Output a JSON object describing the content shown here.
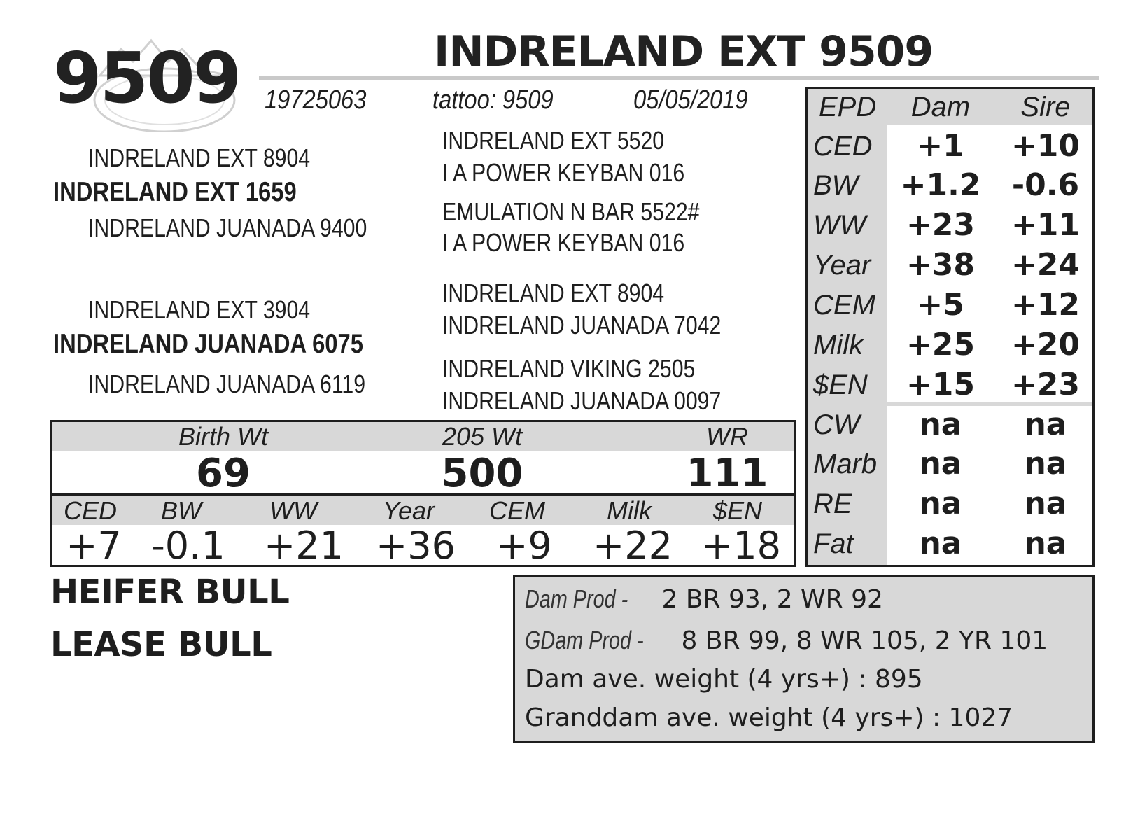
{
  "header": {
    "lot_number": "9509",
    "name": "INDRELAND EXT 9509",
    "registration": "19725063",
    "tattoo": "tattoo: 9509",
    "birth_date": "05/05/2019"
  },
  "pedigree": {
    "sire": "INDRELAND EXT 1659",
    "sire_sire": "INDRELAND EXT 8904",
    "sire_dam": "INDRELAND JUANADA 9400",
    "dam": "INDRELAND JUANADA 6075",
    "dam_sire": "INDRELAND EXT 3904",
    "dam_dam": "INDRELAND JUANADA 6119",
    "right_column": [
      "INDRELAND EXT 5520",
      "I A POWER KEYBAN 016",
      "EMULATION N BAR 5522#",
      "I A POWER KEYBAN 016",
      "INDRELAND EXT 8904",
      "INDRELAND JUANADA 7042",
      "INDRELAND VIKING 2505",
      "INDRELAND JUANADA 0097"
    ]
  },
  "performance": {
    "headers": [
      "Birth Wt",
      "205 Wt",
      "WR"
    ],
    "values": [
      "69",
      "500",
      "111"
    ]
  },
  "epd": {
    "headers": [
      "CED",
      "BW",
      "WW",
      "Year",
      "CEM",
      "Milk",
      "$EN"
    ],
    "values": [
      "+7",
      "-0.1",
      "+21",
      "+36",
      "+9",
      "+22",
      "+18"
    ]
  },
  "epd_table": {
    "headers": [
      "EPD",
      "Dam",
      "Sire"
    ],
    "rows": [
      {
        "label": "CED",
        "dam": "+1",
        "sire": "+10"
      },
      {
        "label": "BW",
        "dam": "+1.2",
        "sire": "-0.6"
      },
      {
        "label": "WW",
        "dam": "+23",
        "sire": "+11"
      },
      {
        "label": "Year",
        "dam": "+38",
        "sire": "+24"
      },
      {
        "label": "CEM",
        "dam": "+5",
        "sire": "+12"
      },
      {
        "label": "Milk",
        "dam": "+25",
        "sire": "+20"
      },
      {
        "label": "$EN",
        "dam": "+15",
        "sire": "+23"
      },
      {
        "label": "CW",
        "dam": "na",
        "sire": "na"
      },
      {
        "label": "Marb",
        "dam": "na",
        "sire": "na"
      },
      {
        "label": "RE",
        "dam": "na",
        "sire": "na"
      },
      {
        "label": "Fat",
        "dam": "na",
        "sire": "na"
      }
    ]
  },
  "tags": [
    "HEIFER BULL",
    "LEASE BULL"
  ],
  "production": {
    "dam_prod_label": "Dam Prod -",
    "dam_prod_value": " 2 BR 93, 2 WR 92",
    "gdam_prod_label": "GDam Prod -",
    "gdam_prod_value": " 8 BR 99, 8 WR 105, 2 YR 101",
    "dam_avg": "Dam ave. weight (4 yrs+) : 895",
    "granddam_avg": "Granddam ave. weight (4 yrs+) : 1027"
  },
  "colors": {
    "ink": "#1e1e1e",
    "shade": "#d8d8d8",
    "logo": "#d0d0d0"
  }
}
